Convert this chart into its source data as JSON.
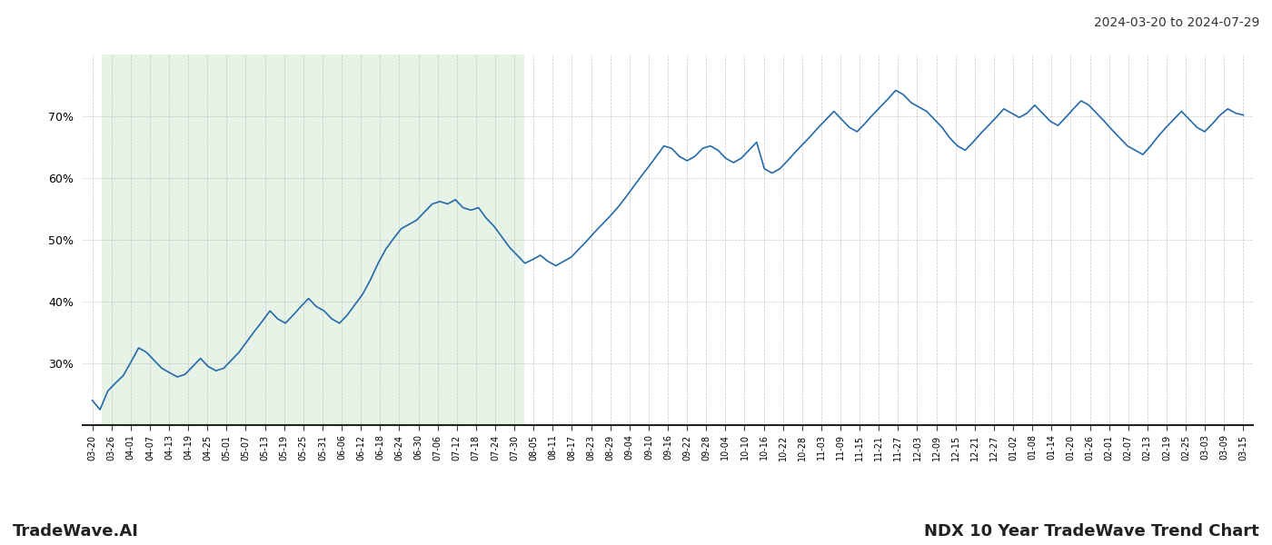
{
  "title_top_right": "2024-03-20 to 2024-07-29",
  "bottom_left": "TradeWave.AI",
  "bottom_right": "NDX 10 Year TradeWave Trend Chart",
  "line_color": "#2469a8",
  "shade_color": "#c8e6c9",
  "shade_alpha": 0.45,
  "bg_color": "#ffffff",
  "grid_color": "#bbbbbb",
  "ylim": [
    20,
    80
  ],
  "yticks": [
    30,
    40,
    50,
    60,
    70
  ],
  "shade_start_label": "03-26",
  "shade_end_label": "07-30",
  "x_labels": [
    "03-20",
    "03-26",
    "04-01",
    "04-07",
    "04-13",
    "04-19",
    "04-25",
    "05-01",
    "05-07",
    "05-13",
    "05-19",
    "05-25",
    "05-31",
    "06-06",
    "06-12",
    "06-18",
    "06-24",
    "06-30",
    "07-06",
    "07-12",
    "07-18",
    "07-24",
    "07-30",
    "08-05",
    "08-11",
    "08-17",
    "08-23",
    "08-29",
    "09-04",
    "09-10",
    "09-16",
    "09-22",
    "09-28",
    "10-04",
    "10-10",
    "10-16",
    "10-22",
    "10-28",
    "11-03",
    "11-09",
    "11-15",
    "11-21",
    "11-27",
    "12-03",
    "12-09",
    "12-15",
    "12-21",
    "12-27",
    "01-02",
    "01-08",
    "01-14",
    "01-20",
    "01-26",
    "02-01",
    "02-07",
    "02-13",
    "02-19",
    "02-25",
    "03-03",
    "03-09",
    "03-15"
  ],
  "values": [
    24.0,
    22.5,
    25.5,
    26.8,
    28.0,
    30.2,
    32.5,
    31.8,
    30.5,
    29.2,
    28.5,
    27.8,
    28.2,
    29.5,
    30.8,
    29.5,
    28.8,
    29.2,
    30.5,
    31.8,
    33.5,
    35.2,
    36.8,
    38.5,
    37.2,
    36.5,
    37.8,
    39.2,
    40.5,
    39.2,
    38.5,
    37.2,
    36.5,
    37.8,
    39.5,
    41.2,
    43.5,
    46.2,
    48.5,
    50.2,
    51.8,
    52.5,
    53.2,
    54.5,
    55.8,
    56.2,
    55.8,
    56.5,
    55.2,
    54.8,
    55.2,
    53.5,
    52.2,
    50.5,
    48.8,
    47.5,
    46.2,
    46.8,
    47.5,
    46.5,
    45.8,
    46.5,
    47.2,
    48.5,
    49.8,
    51.2,
    52.5,
    53.8,
    55.2,
    56.8,
    58.5,
    60.2,
    61.8,
    63.5,
    65.2,
    64.8,
    63.5,
    62.8,
    63.5,
    64.8,
    65.2,
    64.5,
    63.2,
    62.5,
    63.2,
    64.5,
    65.8,
    61.5,
    60.8,
    61.5,
    62.8,
    64.2,
    65.5,
    66.8,
    68.2,
    69.5,
    70.8,
    69.5,
    68.2,
    67.5,
    68.8,
    70.2,
    71.5,
    72.8,
    74.2,
    73.5,
    72.2,
    71.5,
    70.8,
    69.5,
    68.2,
    66.5,
    65.2,
    64.5,
    65.8,
    67.2,
    68.5,
    69.8,
    71.2,
    70.5,
    69.8,
    70.5,
    71.8,
    70.5,
    69.2,
    68.5,
    69.8,
    71.2,
    72.5,
    71.8,
    70.5,
    69.2,
    67.8,
    66.5,
    65.2,
    64.5,
    63.8,
    65.2,
    66.8,
    68.2,
    69.5,
    70.8,
    69.5,
    68.2,
    67.5,
    68.8,
    70.2,
    71.2,
    70.5,
    70.2
  ]
}
